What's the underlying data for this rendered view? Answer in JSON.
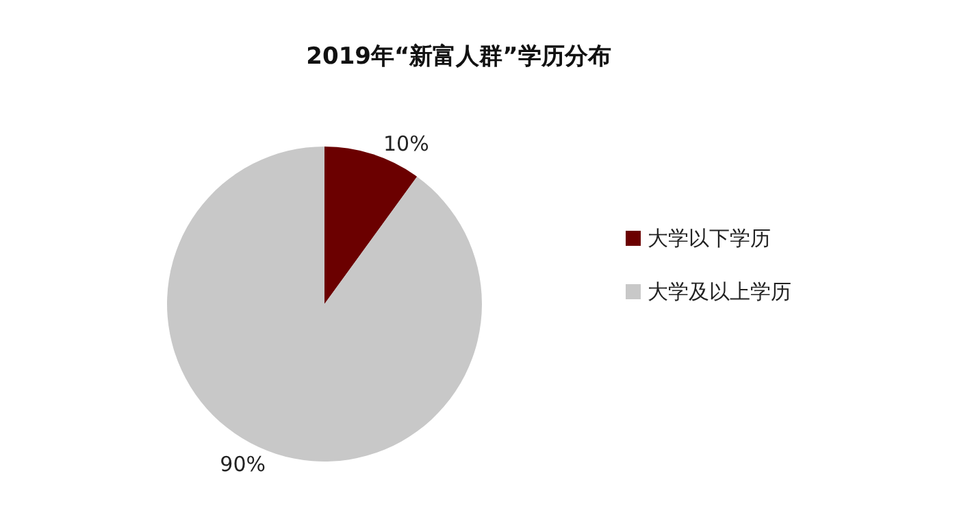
{
  "chart_data": {
    "type": "pie",
    "title": "2019年“新富人群”学历分布",
    "categories": [
      "大学以下学历",
      "大学及以上学历"
    ],
    "values": [
      10,
      90
    ],
    "colors": [
      "#6b0000",
      "#c8c8c8"
    ],
    "value_labels": [
      "10%",
      "90%"
    ],
    "legend": "right"
  }
}
